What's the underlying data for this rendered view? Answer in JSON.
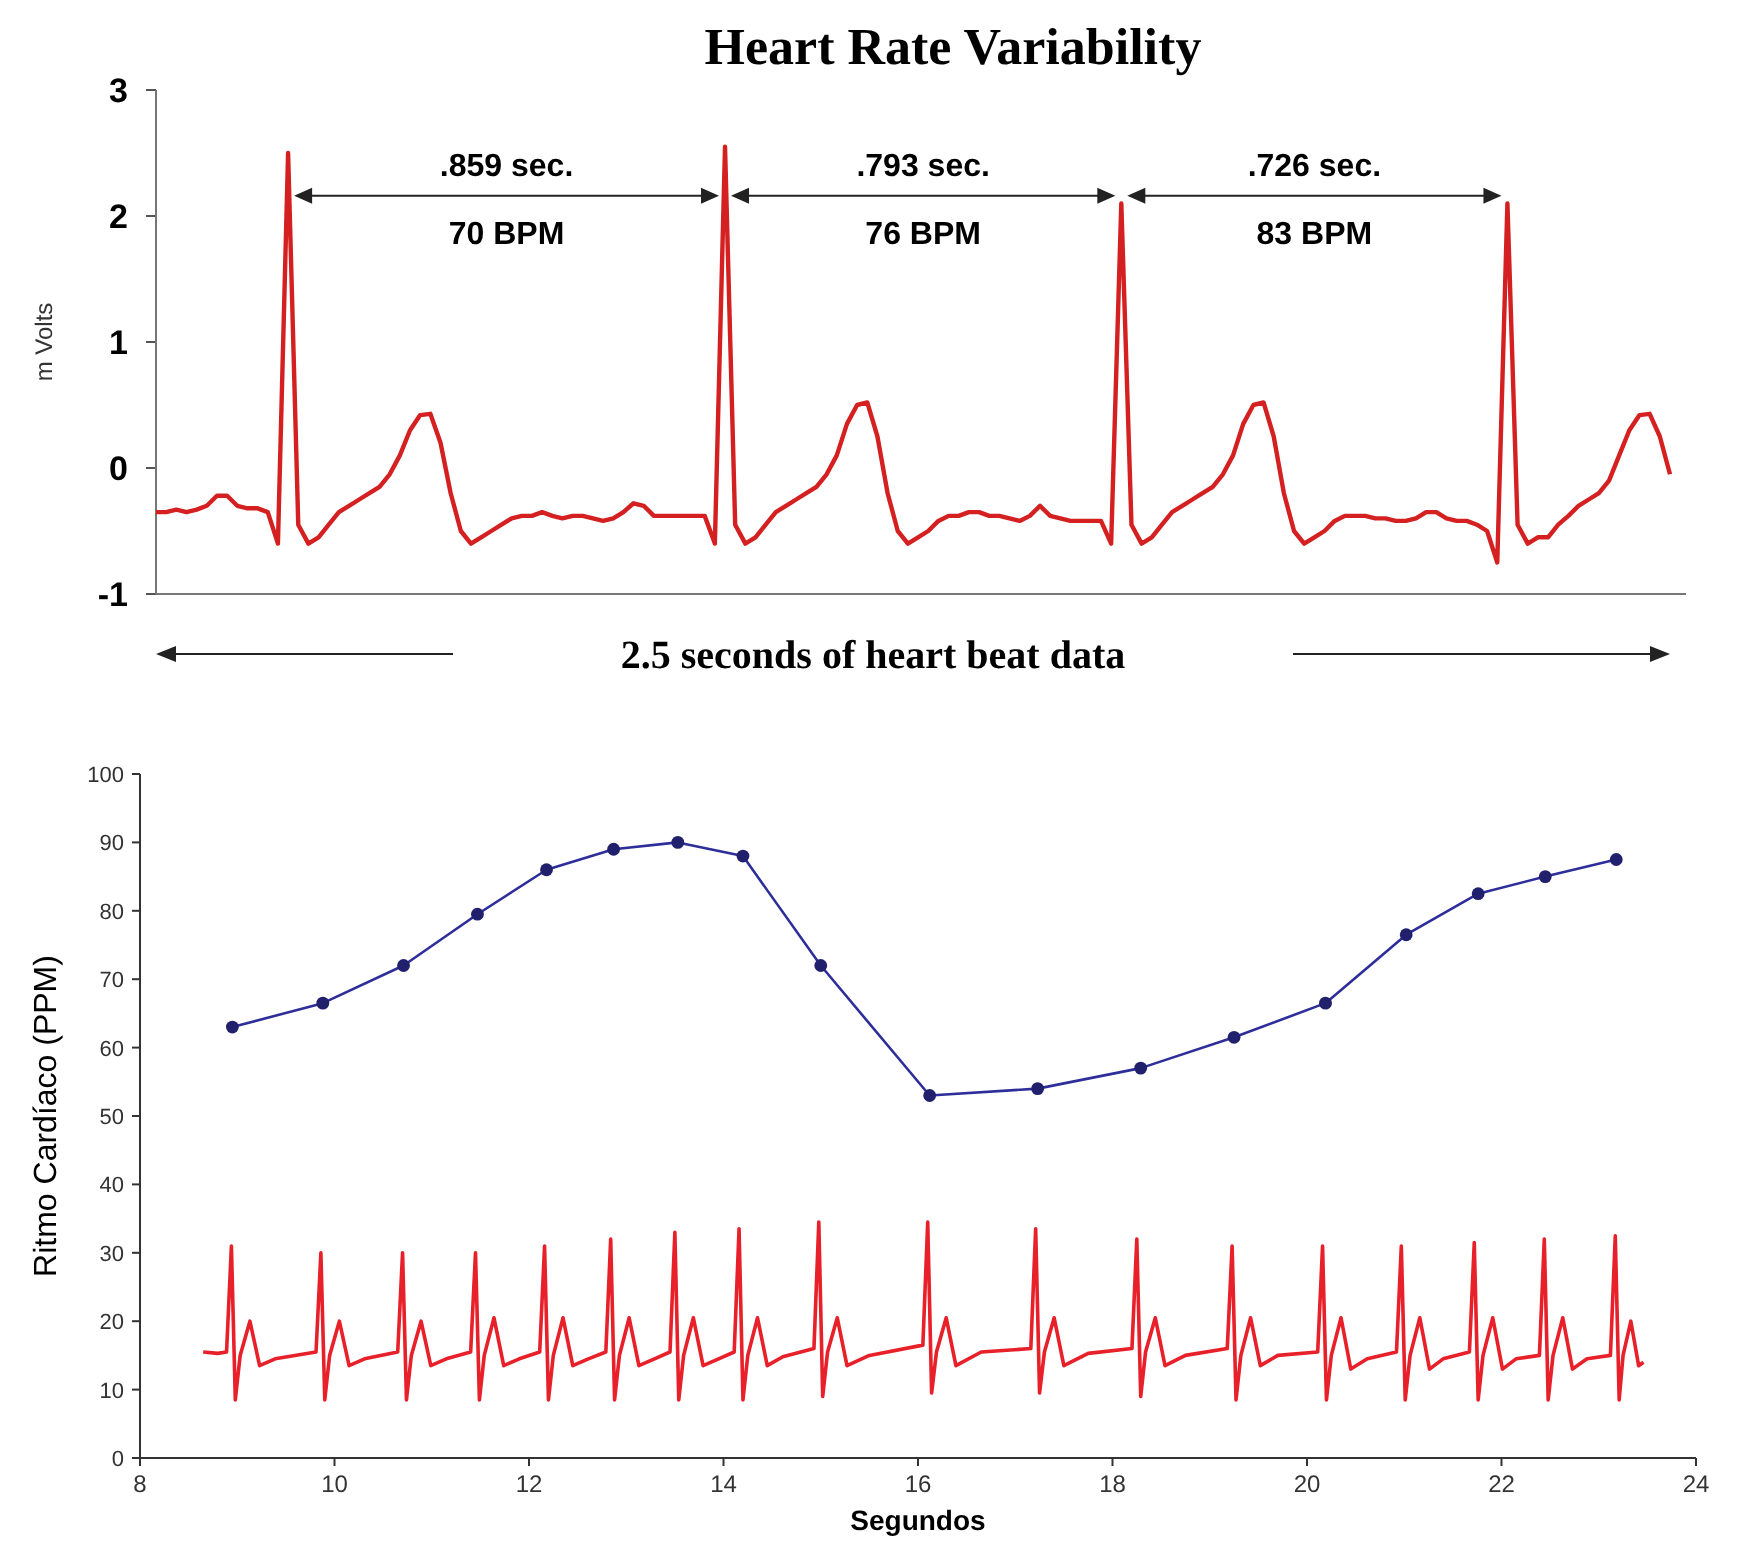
{
  "chart_data": [
    {
      "type": "line",
      "title": "Heart Rate Variability",
      "ylabel": "m Volts",
      "ylim": [
        -1,
        3
      ],
      "yticks": [
        -1,
        0,
        1,
        2,
        3
      ],
      "tick_labels": "y",
      "color": "#d42020",
      "line_style": "solid",
      "annotations": [
        ".859 sec.",
        "70 BPM",
        ".793 sec.",
        "76 BPM",
        ".726 sec.",
        "83 BPM",
        "2.5 seconds of heart beat data"
      ],
      "categories": [
        null,
        null,
        null,
        null,
        null,
        null,
        null,
        null,
        null,
        null,
        null,
        null,
        null,
        null,
        null,
        null,
        null,
        null,
        null,
        null,
        null,
        null,
        null,
        null,
        null,
        null,
        null,
        null,
        null,
        null,
        null,
        null,
        null,
        null,
        null,
        null,
        null,
        null,
        null,
        null,
        null,
        null,
        null,
        null,
        null,
        null,
        null,
        null,
        null,
        null,
        null,
        null,
        null,
        null,
        null,
        null,
        null,
        null,
        null,
        null,
        null,
        null,
        null,
        null,
        null,
        null,
        null,
        null,
        null,
        null,
        null,
        null,
        null,
        null,
        null,
        null,
        null,
        null,
        null,
        null,
        null,
        null,
        null,
        null,
        null,
        null,
        null,
        null,
        null,
        null,
        null,
        null,
        null,
        null,
        null,
        null,
        null,
        null,
        null,
        null,
        null,
        null,
        null,
        null,
        null,
        null,
        null,
        null,
        null,
        null,
        null,
        null,
        null,
        null,
        null,
        null,
        null,
        null,
        null,
        null,
        null,
        null,
        null,
        null,
        null,
        null,
        null,
        null,
        null,
        null,
        null,
        null,
        null,
        null,
        null,
        null,
        null,
        null,
        null,
        null,
        null,
        null,
        null,
        null,
        null,
        null,
        null,
        null,
        null,
        null
      ],
      "values": [
        -0.35,
        -0.35,
        -0.33,
        -0.35,
        -0.33,
        -0.3,
        -0.22,
        -0.22,
        -0.3,
        -0.32,
        -0.32,
        -0.35,
        -0.6,
        2.5,
        -0.45,
        -0.6,
        -0.55,
        -0.45,
        -0.35,
        -0.3,
        -0.25,
        -0.2,
        -0.15,
        -0.05,
        0.1,
        0.3,
        0.42,
        0.43,
        0.2,
        -0.2,
        -0.5,
        -0.6,
        -0.55,
        -0.5,
        -0.45,
        -0.4,
        -0.38,
        -0.38,
        -0.35,
        -0.38,
        -0.4,
        -0.38,
        -0.38,
        -0.4,
        -0.42,
        -0.4,
        -0.35,
        -0.28,
        -0.3,
        -0.38,
        -0.38,
        -0.38,
        -0.38,
        -0.38,
        -0.38,
        -0.6,
        2.55,
        -0.45,
        -0.6,
        -0.55,
        -0.45,
        -0.35,
        -0.3,
        -0.25,
        -0.2,
        -0.15,
        -0.05,
        0.1,
        0.35,
        0.5,
        0.52,
        0.25,
        -0.2,
        -0.5,
        -0.6,
        -0.55,
        -0.5,
        -0.42,
        -0.38,
        -0.38,
        -0.35,
        -0.35,
        -0.38,
        -0.38,
        -0.4,
        -0.42,
        -0.38,
        -0.3,
        -0.38,
        -0.4,
        -0.42,
        -0.42,
        -0.42,
        -0.42,
        -0.6,
        2.1,
        -0.45,
        -0.6,
        -0.55,
        -0.45,
        -0.35,
        -0.3,
        -0.25,
        -0.2,
        -0.15,
        -0.05,
        0.1,
        0.35,
        0.5,
        0.52,
        0.25,
        -0.2,
        -0.5,
        -0.6,
        -0.55,
        -0.5,
        -0.42,
        -0.38,
        -0.38,
        -0.38,
        -0.4,
        -0.4,
        -0.42,
        -0.42,
        -0.4,
        -0.35,
        -0.35,
        -0.4,
        -0.42,
        -0.42,
        -0.45,
        -0.5,
        -0.75,
        2.1,
        -0.45,
        -0.6,
        -0.55,
        -0.55,
        -0.45,
        -0.38,
        -0.3,
        -0.25,
        -0.2,
        -0.1,
        0.1,
        0.3,
        0.42,
        0.43,
        0.25,
        -0.05
      ]
    },
    {
      "type": "line",
      "xlabel": "Segundos",
      "ylabel": "Ritmo Cardíaco (PPM)",
      "xlim": [
        8,
        24
      ],
      "xticks": [
        8,
        10,
        12,
        14,
        16,
        18,
        20,
        22,
        24
      ],
      "ylim": [
        0,
        100
      ],
      "yticks": [
        0,
        10,
        20,
        30,
        40,
        50,
        60,
        70,
        80,
        90,
        100
      ],
      "grid": false,
      "line_style": "solid",
      "series": [
        {
          "color": "#2e2e9a",
          "marker": "circle",
          "x": [
            8.95,
            9.88,
            10.71,
            11.47,
            12.18,
            12.87,
            13.53,
            14.2,
            15.0,
            16.12,
            17.23,
            18.29,
            19.25,
            20.19,
            21.02,
            21.76,
            22.45,
            23.18
          ],
          "values": [
            63,
            66.5,
            72,
            79.5,
            86,
            89,
            90,
            88,
            72,
            53,
            54,
            57,
            61.5,
            66.5,
            76.5,
            82.5,
            85,
            87.5
          ]
        },
        {
          "color": "#e8202a",
          "marker": "none",
          "x": [
            8.65,
            8.8,
            8.89,
            8.94,
            8.98,
            9.03,
            9.13,
            9.23,
            9.39,
            9.81,
            9.86,
            9.9,
            9.95,
            10.05,
            10.15,
            10.31,
            10.65,
            10.7,
            10.74,
            10.79,
            10.89,
            10.99,
            11.15,
            11.4,
            11.45,
            11.49,
            11.54,
            11.64,
            11.74,
            11.9,
            12.11,
            12.16,
            12.2,
            12.25,
            12.35,
            12.45,
            12.61,
            12.79,
            12.84,
            12.88,
            12.93,
            13.03,
            13.13,
            13.29,
            13.45,
            13.5,
            13.54,
            13.59,
            13.69,
            13.79,
            13.95,
            14.11,
            14.16,
            14.2,
            14.25,
            14.35,
            14.45,
            14.61,
            14.93,
            14.98,
            15.02,
            15.07,
            15.17,
            15.27,
            15.5,
            16.05,
            16.1,
            16.14,
            16.19,
            16.29,
            16.39,
            16.65,
            17.16,
            17.21,
            17.25,
            17.3,
            17.4,
            17.5,
            17.75,
            18.2,
            18.25,
            18.29,
            18.34,
            18.44,
            18.54,
            18.75,
            19.18,
            19.23,
            19.27,
            19.32,
            19.42,
            19.52,
            19.7,
            20.11,
            20.16,
            20.2,
            20.25,
            20.35,
            20.45,
            20.62,
            20.92,
            20.97,
            21.01,
            21.06,
            21.16,
            21.26,
            21.4,
            21.67,
            21.72,
            21.76,
            21.81,
            21.91,
            22.01,
            22.15,
            22.39,
            22.44,
            22.48,
            22.53,
            22.63,
            22.73,
            22.88,
            23.12,
            23.17,
            23.21,
            23.25,
            23.33,
            23.41,
            23.46
          ],
          "values": [
            15.5,
            15.3,
            15.5,
            31,
            8.5,
            15,
            20,
            13.5,
            14.5,
            15.5,
            30,
            8.5,
            15,
            20,
            13.5,
            14.5,
            15.5,
            30,
            8.5,
            15,
            20,
            13.5,
            14.5,
            15.5,
            30,
            8.5,
            15,
            20.5,
            13.5,
            14.5,
            15.5,
            31,
            8.5,
            15,
            20.5,
            13.5,
            14.5,
            15.5,
            32,
            8.5,
            15,
            20.5,
            13.5,
            14.5,
            15.5,
            33,
            8.5,
            15,
            20.5,
            13.5,
            14.5,
            15.5,
            33.5,
            8.5,
            15,
            20.5,
            13.5,
            14.8,
            16,
            34.5,
            9,
            15.5,
            20.5,
            13.5,
            15,
            16.5,
            34.5,
            9.5,
            15.5,
            20.5,
            13.5,
            15.5,
            16,
            33.5,
            9.5,
            15.5,
            20.5,
            13.5,
            15.3,
            16,
            32,
            9,
            15.5,
            20.5,
            13.5,
            15,
            16,
            31,
            8.5,
            15,
            20.5,
            13.5,
            15,
            15.5,
            31,
            8.5,
            15,
            20.5,
            13,
            14.5,
            15.5,
            31,
            8.5,
            15,
            20.5,
            13,
            14.5,
            15.5,
            31.5,
            8.5,
            15,
            20.5,
            13,
            14.5,
            15,
            32,
            8.5,
            15,
            20.5,
            13,
            14.5,
            15,
            32.5,
            8.5,
            15,
            20,
            13.5,
            14
          ]
        }
      ]
    }
  ]
}
